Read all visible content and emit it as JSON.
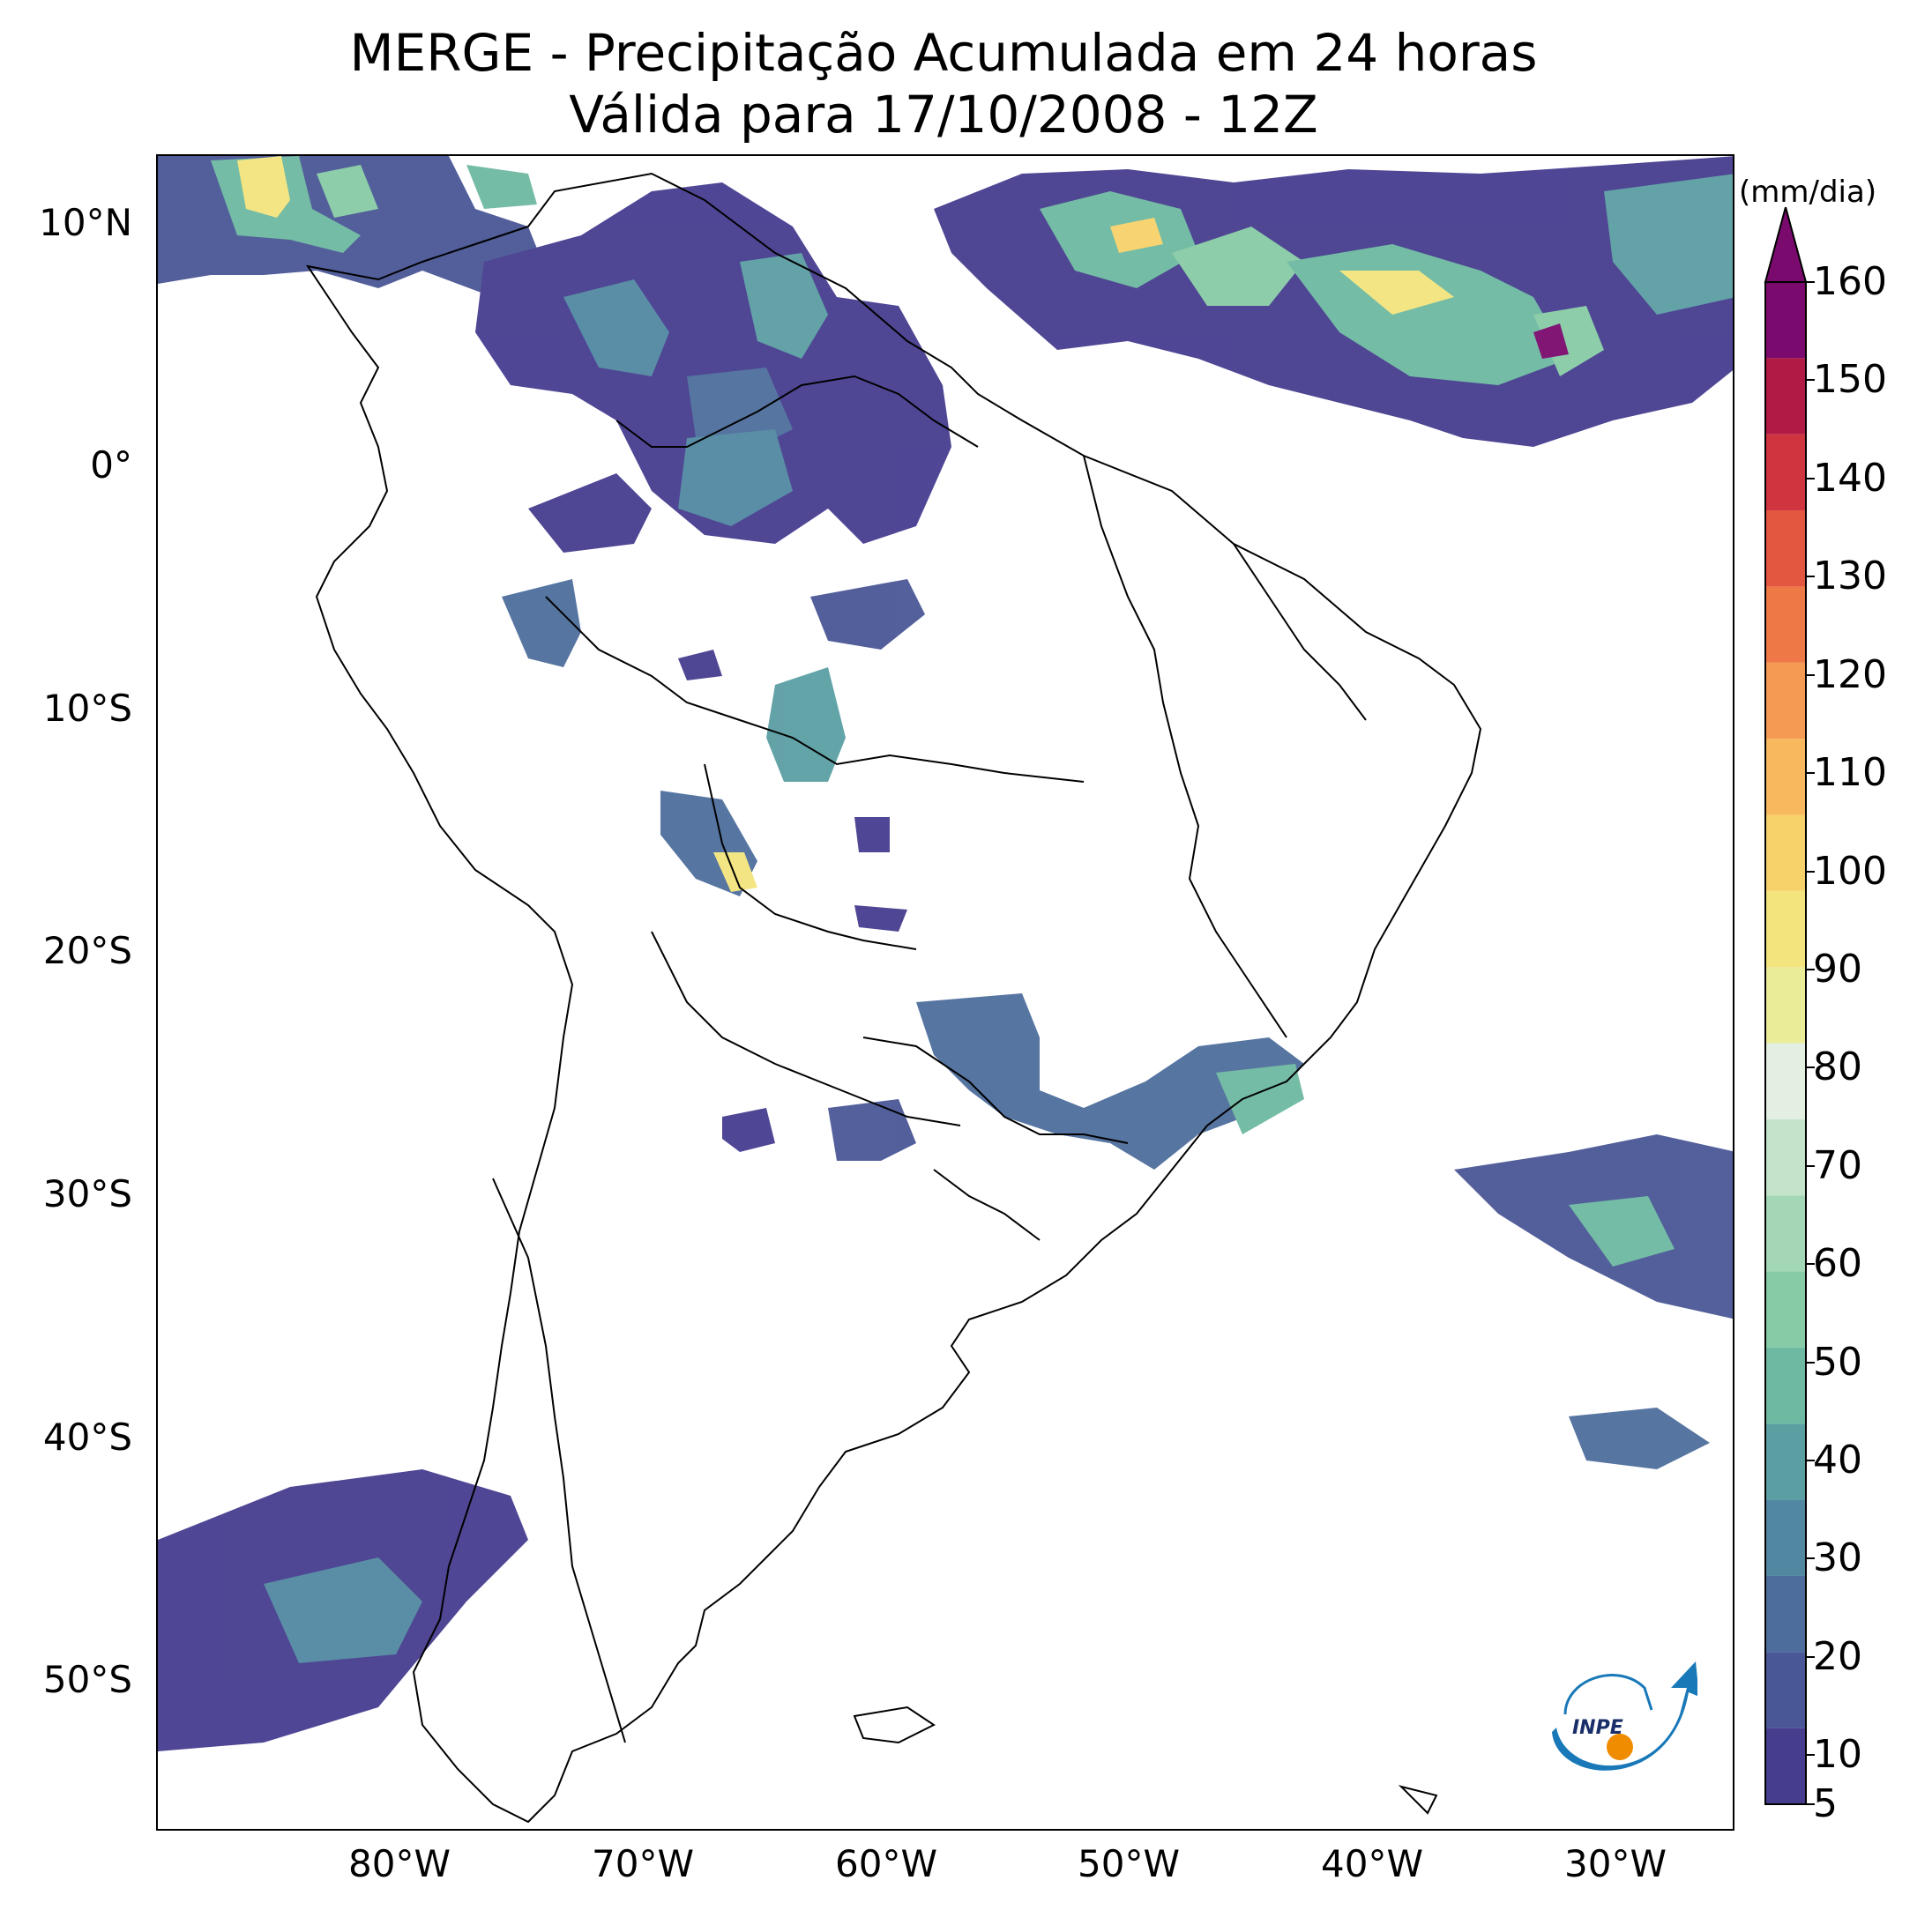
{
  "title": {
    "line1": "MERGE - Precipitação Acumulada em 24 horas",
    "line2": "Válida para 17/10/2008 - 12Z"
  },
  "axes": {
    "lat_labels": [
      "10°N",
      "0°",
      "10°S",
      "20°S",
      "30°S",
      "40°S",
      "50°S"
    ],
    "lon_labels": [
      "80°W",
      "70°W",
      "60°W",
      "50°W",
      "40°W",
      "30°W"
    ]
  },
  "colorbar": {
    "unit": "(mm/dia)",
    "ticks": [
      "5",
      "10",
      "20",
      "30",
      "40",
      "50",
      "60",
      "70",
      "80",
      "90",
      "100",
      "110",
      "120",
      "130",
      "140",
      "150",
      "160"
    ],
    "colors": [
      "#463d8f",
      "#4a5796",
      "#4d6e9c",
      "#5287a2",
      "#5b9fa3",
      "#6db9a1",
      "#87cba6",
      "#a3d7b5",
      "#c3e3cb",
      "#e2efe1",
      "#eaec98",
      "#f3e47e",
      "#f7d26a",
      "#f8b85e",
      "#f49a52",
      "#ee7846",
      "#e35640",
      "#cf353f",
      "#b01a45",
      "#7b0a6e"
    ]
  },
  "logo": {
    "text": "INPE"
  }
}
